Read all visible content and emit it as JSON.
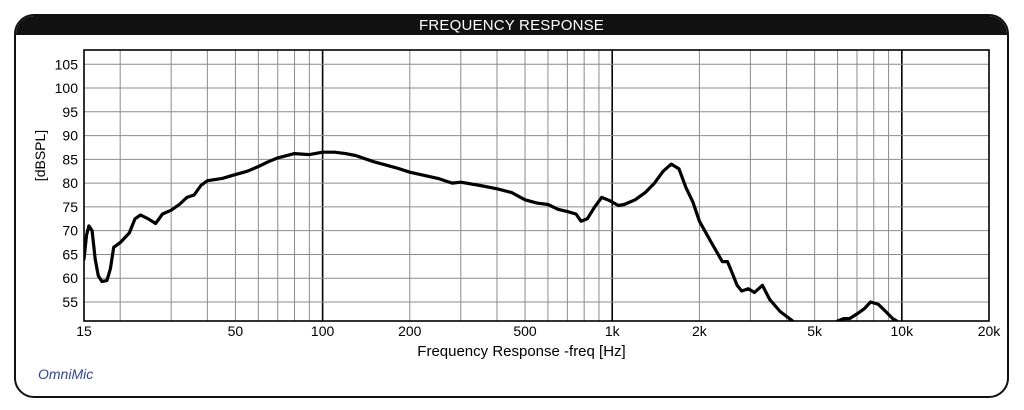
{
  "chart_data": {
    "type": "line",
    "title": "FREQUENCY RESPONSE",
    "xlabel": "Frequency Response -freq [Hz]",
    "ylabel": "[dBSPL]",
    "xscale": "log",
    "xlim": [
      15,
      20000
    ],
    "ylim": [
      51,
      108
    ],
    "grid": true,
    "x_tick_labels": [
      "15",
      "50",
      "100",
      "200",
      "500",
      "1k",
      "2k",
      "5k",
      "10k",
      "20k"
    ],
    "x_tick_values": [
      15,
      50,
      100,
      200,
      500,
      1000,
      2000,
      5000,
      10000,
      20000
    ],
    "y_tick_labels": [
      "55",
      "60",
      "65",
      "70",
      "75",
      "80",
      "85",
      "90",
      "95",
      "100",
      "105"
    ],
    "y_tick_values": [
      55,
      60,
      65,
      70,
      75,
      80,
      85,
      90,
      95,
      100,
      105
    ],
    "series": [
      {
        "color": "#000000",
        "points": [
          [
            15,
            64
          ],
          [
            15.3,
            69
          ],
          [
            15.6,
            71
          ],
          [
            16.0,
            70
          ],
          [
            16.4,
            64
          ],
          [
            16.8,
            60.5
          ],
          [
            17.3,
            59.3
          ],
          [
            18.0,
            59.5
          ],
          [
            18.5,
            62
          ],
          [
            19.0,
            66.5
          ],
          [
            20,
            67.5
          ],
          [
            21.5,
            69.5
          ],
          [
            22.5,
            72.5
          ],
          [
            23.5,
            73.3
          ],
          [
            25,
            72.5
          ],
          [
            26.5,
            71.5
          ],
          [
            28,
            73.5
          ],
          [
            30,
            74.3
          ],
          [
            32,
            75.5
          ],
          [
            34,
            77
          ],
          [
            36,
            77.5
          ],
          [
            38,
            79.5
          ],
          [
            40,
            80.5
          ],
          [
            45,
            81
          ],
          [
            50,
            81.8
          ],
          [
            55,
            82.5
          ],
          [
            60,
            83.5
          ],
          [
            65,
            84.5
          ],
          [
            70,
            85.3
          ],
          [
            80,
            86.2
          ],
          [
            90,
            86
          ],
          [
            100,
            86.5
          ],
          [
            110,
            86.5
          ],
          [
            120,
            86.2
          ],
          [
            130,
            85.8
          ],
          [
            150,
            84.5
          ],
          [
            180,
            83.2
          ],
          [
            200,
            82.3
          ],
          [
            250,
            81
          ],
          [
            280,
            80
          ],
          [
            300,
            80.2
          ],
          [
            350,
            79.5
          ],
          [
            400,
            78.8
          ],
          [
            450,
            78
          ],
          [
            500,
            76.5
          ],
          [
            550,
            75.8
          ],
          [
            600,
            75.5
          ],
          [
            650,
            74.5
          ],
          [
            700,
            74
          ],
          [
            750,
            73.5
          ],
          [
            780,
            72
          ],
          [
            820,
            72.5
          ],
          [
            870,
            75
          ],
          [
            920,
            77
          ],
          [
            980,
            76.3
          ],
          [
            1050,
            75.3
          ],
          [
            1100,
            75.5
          ],
          [
            1200,
            76.5
          ],
          [
            1300,
            78
          ],
          [
            1400,
            80
          ],
          [
            1500,
            82.5
          ],
          [
            1600,
            84
          ],
          [
            1700,
            83
          ],
          [
            1800,
            79
          ],
          [
            1900,
            76
          ],
          [
            2000,
            72
          ],
          [
            2200,
            67.5
          ],
          [
            2400,
            63.5
          ],
          [
            2500,
            63.5
          ],
          [
            2600,
            61
          ],
          [
            2700,
            58.5
          ],
          [
            2800,
            57.3
          ],
          [
            2950,
            57.8
          ],
          [
            3100,
            57
          ],
          [
            3300,
            58.5
          ],
          [
            3500,
            55.5
          ],
          [
            3800,
            53
          ],
          [
            4200,
            51
          ]
        ]
      },
      {
        "color": "#000000",
        "points": [
          [
            6000,
            51
          ],
          [
            6300,
            51.5
          ],
          [
            6600,
            51.5
          ],
          [
            7000,
            52.5
          ],
          [
            7400,
            53.5
          ],
          [
            7800,
            55
          ],
          [
            8300,
            54.5
          ],
          [
            8800,
            53
          ],
          [
            9300,
            51.5
          ],
          [
            9600,
            51
          ]
        ]
      }
    ],
    "watermark": "OmniMic"
  }
}
